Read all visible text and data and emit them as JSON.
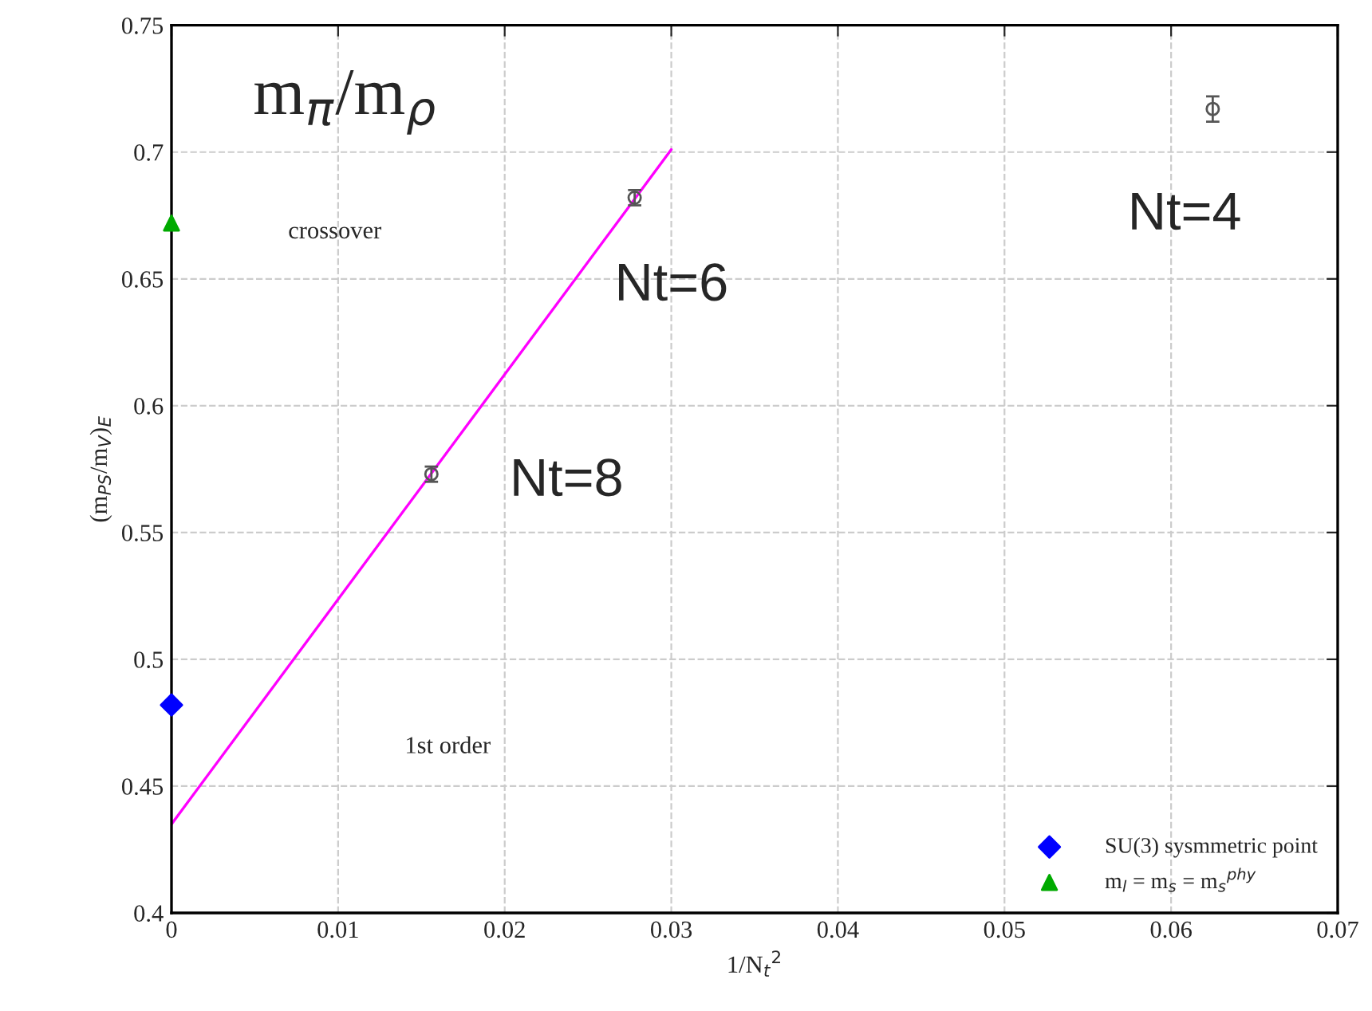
{
  "chart_data": {
    "type": "scatter",
    "xlabel": "1/N$_{t}$$^{2}$",
    "ylabel": "(m$_{PS}$/m$_{V}$)$_{E}$",
    "xlim": [
      0,
      0.07
    ],
    "xticks": [
      0,
      0.01,
      0.02,
      0.03,
      0.04,
      0.05,
      0.06,
      0.07
    ],
    "ylim": [
      0.4,
      0.75
    ],
    "yticks": [
      0.4,
      0.45,
      0.5,
      0.55,
      0.6,
      0.65,
      0.7,
      0.75
    ],
    "grid": true,
    "legend": "bottom right",
    "annotations": [
      "m$_{π}$/m$_{ρ}$",
      "crossover",
      "1st order",
      "Nt=4",
      "Nt=6",
      "Nt=8"
    ],
    "series": [
      {
        "type": "line",
        "color": "#ff00ff",
        "x": [
          0,
          0.03
        ],
        "values": [
          0.435,
          0.701
        ],
        "marker": "none"
      },
      {
        "color": "#555555",
        "x": [
          0.0156,
          0.0278,
          0.0625
        ],
        "values": [
          0.573,
          0.682,
          0.717
        ],
        "errors": [
          0.003,
          0.003,
          0.005
        ],
        "marker": "circle"
      },
      {
        "name": "SU(3) sysmmetric point",
        "color": "#0000ff",
        "x": [
          0
        ],
        "values": [
          0.482
        ],
        "marker": "diamond"
      },
      {
        "name": "m$_{l}$ = m$_{s}$ = m$_{s}$$^{phy}$",
        "color": "#00aa00",
        "x": [
          0
        ],
        "values": [
          0.672
        ],
        "marker": "triangle"
      }
    ]
  }
}
